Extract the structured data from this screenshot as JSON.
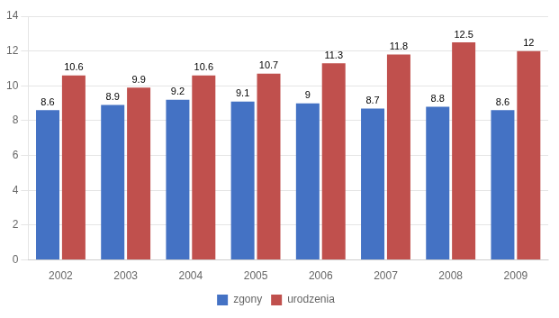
{
  "chart_data": {
    "type": "bar",
    "categories": [
      "2002",
      "2003",
      "2004",
      "2005",
      "2006",
      "2007",
      "2008",
      "2009"
    ],
    "series": [
      {
        "name": "zgony",
        "color": "#4472C4",
        "values": [
          8.6,
          8.9,
          9.2,
          9.1,
          9.0,
          8.7,
          8.8,
          8.6
        ]
      },
      {
        "name": "urodzenia",
        "color": "#C0504D",
        "values": [
          10.6,
          9.9,
          10.6,
          10.7,
          11.3,
          11.8,
          12.5,
          12.0
        ]
      }
    ],
    "ylim": [
      0,
      14
    ],
    "yticks": [
      0,
      2,
      4,
      6,
      8,
      10,
      12,
      14
    ],
    "grid": true,
    "legend": "bottom",
    "data_labels": true
  }
}
